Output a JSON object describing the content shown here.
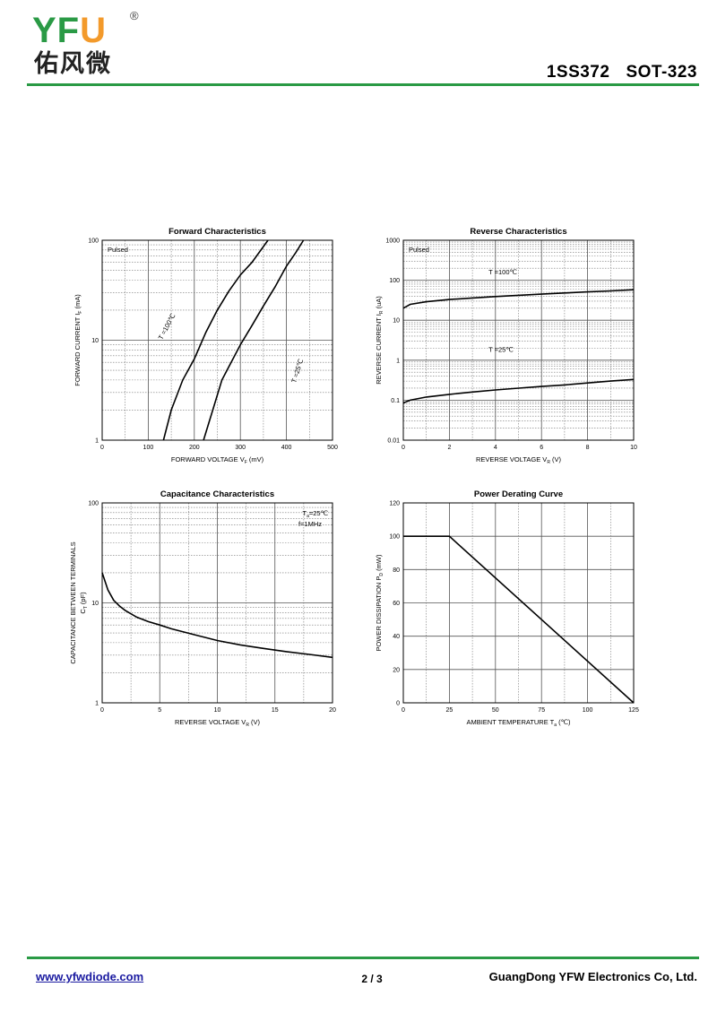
{
  "header": {
    "brand_letters_1": "YF",
    "brand_letters_2": "U",
    "registered": "®",
    "brand_cn": "佑风微",
    "part_number": "1SS372",
    "package": "SOT-323"
  },
  "footer": {
    "website": "www.yfwdiode.com",
    "page": "2 / 3",
    "company": "GuangDong YFW Electronics Co, Ltd."
  },
  "colors": {
    "brand_green": "#2a9a45",
    "brand_orange": "#f39a2b",
    "link_blue": "#1a1aa0"
  },
  "chart_data": [
    {
      "type": "line",
      "title": "Forward    Characteristics",
      "xlabel": "FORWARD VOLTAGE",
      "xlabel_sym": "V",
      "xlabel_sub": "F",
      "xlabel_unit": "(mV)",
      "ylabel": "FORWARD CURRENT",
      "ylabel_sym": "I",
      "ylabel_sub": "F",
      "ylabel_unit": "(mA)",
      "xscale": "linear",
      "yscale": "log",
      "xlim": [
        0,
        500
      ],
      "ylim": [
        1,
        100
      ],
      "xticks": [
        0,
        100,
        200,
        300,
        400,
        500
      ],
      "xtick_labels": [
        "0",
        "100",
        "200",
        "300",
        "400",
        "500"
      ],
      "yticks": [
        1,
        10,
        100
      ],
      "ytick_labels": [
        "1",
        "10",
        "100"
      ],
      "legend_note": "Pulsed",
      "series": [
        {
          "name": "T =100℃",
          "x": [
            133,
            150,
            175,
            200,
            225,
            250,
            275,
            300,
            325,
            360
          ],
          "y": [
            1,
            2,
            4,
            6.5,
            12,
            20,
            31,
            45,
            60,
            100
          ]
        },
        {
          "name": "T =25℃",
          "x": [
            220,
            240,
            260,
            280,
            300,
            325,
            350,
            375,
            400,
            420,
            437
          ],
          "y": [
            1,
            2,
            4,
            6,
            9,
            14,
            22,
            34,
            55,
            75,
            100
          ]
        }
      ]
    },
    {
      "type": "line",
      "title": "Reverse    Characteristics",
      "xlabel": "REVERSE VOLTAGE",
      "xlabel_sym": "V",
      "xlabel_sub": "R",
      "xlabel_unit": "(V)",
      "ylabel": "REVERSE CURRENT",
      "ylabel_sym": "I",
      "ylabel_sub": "R",
      "ylabel_unit": "(uA)",
      "xscale": "linear",
      "yscale": "log",
      "xlim": [
        0,
        10
      ],
      "ylim": [
        0.01,
        1000
      ],
      "xticks": [
        0,
        2,
        4,
        6,
        8,
        10
      ],
      "xtick_labels": [
        "0",
        "2",
        "4",
        "6",
        "8",
        "10"
      ],
      "yticks": [
        0.01,
        0.1,
        1,
        10,
        100,
        1000
      ],
      "ytick_labels": [
        "0.01",
        "0.1",
        "1",
        "10",
        "100",
        "1000"
      ],
      "legend_note": "Pulsed",
      "series": [
        {
          "name": "T =100℃",
          "x": [
            0,
            0.3,
            1,
            2,
            3,
            4,
            5,
            6,
            7,
            8,
            9,
            10
          ],
          "y": [
            20,
            25,
            29,
            33,
            36,
            39,
            42,
            45,
            48,
            51,
            54,
            58
          ]
        },
        {
          "name": "T =25℃",
          "x": [
            0,
            0.3,
            1,
            2,
            3,
            4,
            5,
            6,
            7,
            8,
            9,
            10
          ],
          "y": [
            0.085,
            0.1,
            0.12,
            0.14,
            0.16,
            0.18,
            0.2,
            0.22,
            0.24,
            0.27,
            0.3,
            0.33
          ]
        }
      ]
    },
    {
      "type": "line",
      "title": "Capacitance Characteristics",
      "xlabel": "REVERSE VOLTAGE",
      "xlabel_sym": "V",
      "xlabel_sub": "R",
      "xlabel_unit": "(V)",
      "ylabel": "CAPACITANCE BETWEEN TERMINALS",
      "ylabel_sym": "C",
      "ylabel_sub": "T",
      "ylabel_unit": "(pF)",
      "xscale": "linear",
      "yscale": "log",
      "xlim": [
        0,
        20
      ],
      "ylim": [
        1,
        100
      ],
      "xticks": [
        0,
        5,
        10,
        15,
        20
      ],
      "xtick_labels": [
        "0",
        "5",
        "10",
        "15",
        "20"
      ],
      "yticks": [
        1,
        10,
        100
      ],
      "ytick_labels": [
        "1",
        "10",
        "100"
      ],
      "legend_note": "T =25℃",
      "legend_note_sub": "a",
      "legend_note_2": "f=1MHz",
      "series": [
        {
          "x": [
            0,
            0.5,
            1,
            1.5,
            2,
            3,
            4,
            5,
            6,
            8,
            10,
            12,
            14,
            16,
            18,
            20
          ],
          "y": [
            20,
            13.5,
            10.6,
            9.3,
            8.4,
            7.2,
            6.5,
            6.0,
            5.5,
            4.8,
            4.2,
            3.8,
            3.5,
            3.25,
            3.05,
            2.85
          ]
        }
      ]
    },
    {
      "type": "line",
      "title": "Power Derating Curve",
      "xlabel": "AMBIENT TEMPERATURE",
      "xlabel_sym": "T",
      "xlabel_sub": "a",
      "xlabel_unit": "(℃)",
      "ylabel": "POWER DISSIPATION",
      "ylabel_sym": "P",
      "ylabel_sub": "D",
      "ylabel_unit": "(mW)",
      "xscale": "linear",
      "yscale": "linear",
      "xlim": [
        0,
        125
      ],
      "ylim": [
        0,
        120
      ],
      "xticks": [
        0,
        25,
        50,
        75,
        100,
        125
      ],
      "xtick_labels": [
        "0",
        "25",
        "50",
        "75",
        "100",
        "125"
      ],
      "yticks": [
        0,
        20,
        40,
        60,
        80,
        100,
        120
      ],
      "ytick_labels": [
        "0",
        "20",
        "40",
        "60",
        "80",
        "100",
        "120"
      ],
      "series": [
        {
          "x": [
            0,
            25,
            125
          ],
          "y": [
            100,
            100,
            0
          ]
        }
      ]
    }
  ]
}
